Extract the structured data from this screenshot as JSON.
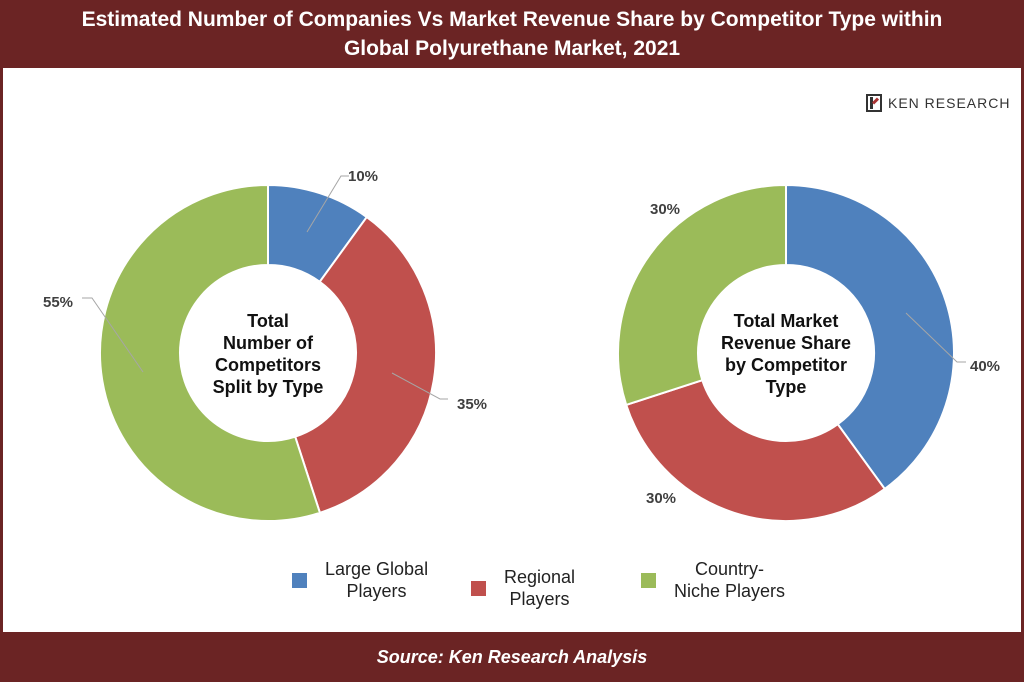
{
  "header": {
    "title_line1": "Estimated Number of Companies Vs Market Revenue Share by Competitor Type within",
    "title_line2": "Global Polyurethane Market, 2021"
  },
  "logo": {
    "text": "KEN RESEARCH"
  },
  "footer": {
    "source": "Source: Ken Research Analysis"
  },
  "colors": {
    "large": "#4f81bd",
    "regional": "#c0504d",
    "niche": "#9bbb59",
    "header_bg": "#6b2424"
  },
  "legend": [
    {
      "label_line1": "Large Global",
      "label_line2": "Players",
      "color": "#4f81bd"
    },
    {
      "label_line1": "Regional",
      "label_line2": "Players",
      "color": "#c0504d"
    },
    {
      "label_line1": "Country-",
      "label_line2": "Niche Players",
      "color": "#9bbb59"
    }
  ],
  "chart_data": [
    {
      "type": "pie",
      "title_lines": [
        "Total",
        "Number of",
        "Competitors",
        "Split by Type"
      ],
      "categories": [
        "Large Global Players",
        "Regional Players",
        "Country-Niche Players"
      ],
      "values": [
        10,
        35,
        55
      ],
      "labels": [
        "10%",
        "35%",
        "55%"
      ]
    },
    {
      "type": "pie",
      "title_lines": [
        "Total Market",
        "Revenue Share",
        "by Competitor",
        "Type"
      ],
      "categories": [
        "Large Global Players",
        "Regional Players",
        "Country-Niche Players"
      ],
      "values": [
        40,
        30,
        30
      ],
      "labels": [
        "40%",
        "30%",
        "30%"
      ]
    }
  ]
}
